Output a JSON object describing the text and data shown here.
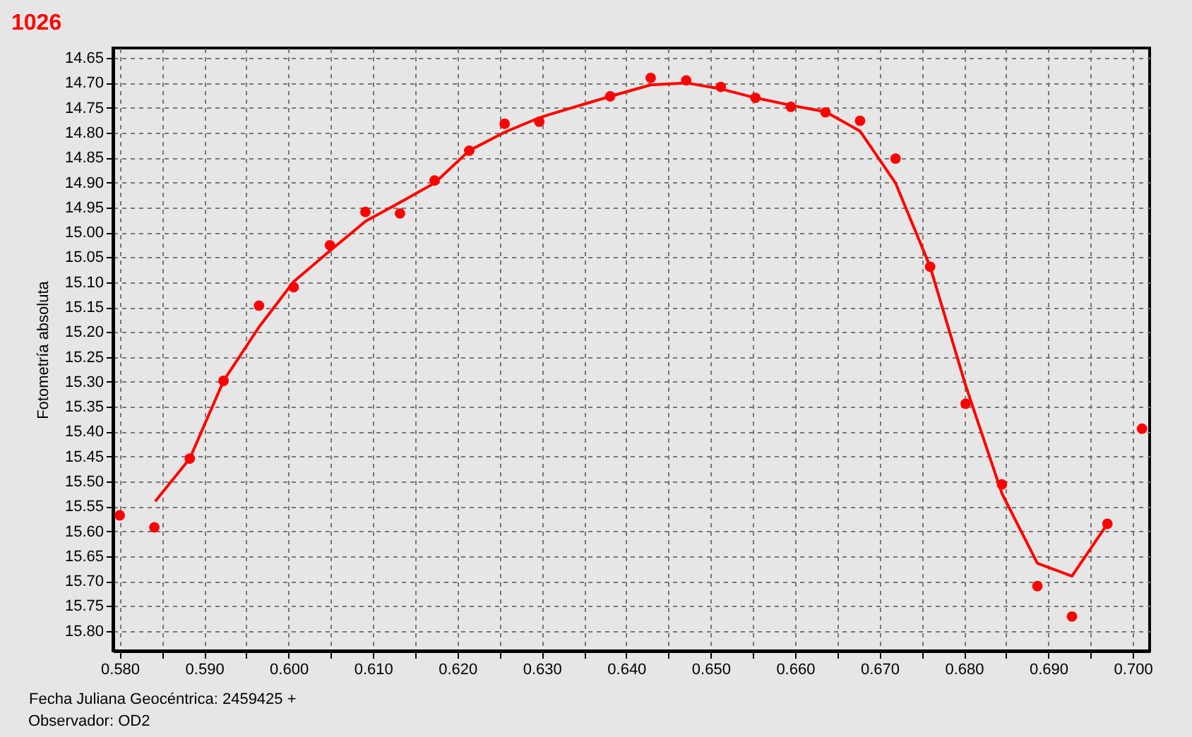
{
  "chart_data": {
    "type": "scatter",
    "title": "1026",
    "xlabel": "Fecha Juliana Geocéntrica: 2459425 +",
    "ylabel": "Fotometría absoluta",
    "annotations": [
      "Observador: OD2"
    ],
    "xlim": [
      0.5792,
      0.702
    ],
    "ylim": [
      15.84,
      14.63
    ],
    "xticks": [
      {
        "value": 0.58,
        "label": "0.580"
      },
      {
        "value": 0.585,
        "label": null
      },
      {
        "value": 0.59,
        "label": "0.590"
      },
      {
        "value": 0.595,
        "label": null
      },
      {
        "value": 0.6,
        "label": "0.600"
      },
      {
        "value": 0.605,
        "label": null
      },
      {
        "value": 0.61,
        "label": "0.610"
      },
      {
        "value": 0.615,
        "label": null
      },
      {
        "value": 0.62,
        "label": "0.620"
      },
      {
        "value": 0.625,
        "label": null
      },
      {
        "value": 0.63,
        "label": "0.630"
      },
      {
        "value": 0.635,
        "label": null
      },
      {
        "value": 0.64,
        "label": "0.640"
      },
      {
        "value": 0.645,
        "label": null
      },
      {
        "value": 0.65,
        "label": "0.650"
      },
      {
        "value": 0.655,
        "label": null
      },
      {
        "value": 0.66,
        "label": "0.660"
      },
      {
        "value": 0.665,
        "label": null
      },
      {
        "value": 0.67,
        "label": "0.670"
      },
      {
        "value": 0.675,
        "label": null
      },
      {
        "value": 0.68,
        "label": "0.680"
      },
      {
        "value": 0.685,
        "label": null
      },
      {
        "value": 0.69,
        "label": "0.690"
      },
      {
        "value": 0.695,
        "label": null
      },
      {
        "value": 0.7,
        "label": "0.700"
      }
    ],
    "yticks": [
      {
        "value": 14.65,
        "label": "14.65"
      },
      {
        "value": 14.7,
        "label": "14.70"
      },
      {
        "value": 14.75,
        "label": "14.75"
      },
      {
        "value": 14.8,
        "label": "14.80"
      },
      {
        "value": 14.85,
        "label": "14.85"
      },
      {
        "value": 14.9,
        "label": "14.90"
      },
      {
        "value": 14.95,
        "label": "14.95"
      },
      {
        "value": 15.0,
        "label": "15.00"
      },
      {
        "value": 15.05,
        "label": "15.05"
      },
      {
        "value": 15.1,
        "label": "15.10"
      },
      {
        "value": 15.15,
        "label": "15.15"
      },
      {
        "value": 15.2,
        "label": "15.20"
      },
      {
        "value": 15.25,
        "label": "15.25"
      },
      {
        "value": 15.3,
        "label": "15.30"
      },
      {
        "value": 15.35,
        "label": "15.35"
      },
      {
        "value": 15.4,
        "label": "15.40"
      },
      {
        "value": 15.45,
        "label": "15.45"
      },
      {
        "value": 15.5,
        "label": "15.50"
      },
      {
        "value": 15.55,
        "label": "15.55"
      },
      {
        "value": 15.6,
        "label": "15.60"
      },
      {
        "value": 15.65,
        "label": "15.65"
      },
      {
        "value": 15.7,
        "label": "15.70"
      },
      {
        "value": 15.75,
        "label": "15.75"
      },
      {
        "value": 15.8,
        "label": "15.80"
      }
    ],
    "grid": true,
    "series": [
      {
        "type": "line",
        "color": "#ff0000",
        "marker": "none",
        "line_style": "solid",
        "x": [
          0.5842,
          0.5883,
          0.5923,
          0.5965,
          0.6006,
          0.6049,
          0.6091,
          0.6132,
          0.6173,
          0.6214,
          0.6256,
          0.6297,
          0.631,
          0.6381,
          0.6429,
          0.6471,
          0.6512,
          0.6553,
          0.6595,
          0.6636,
          0.6677,
          0.6719,
          0.676,
          0.6802,
          0.6845,
          0.6887,
          0.6928,
          0.697
        ],
        "values": [
          15.54,
          15.454,
          15.298,
          15.19,
          15.099,
          15.037,
          14.978,
          14.94,
          14.901,
          14.836,
          14.799,
          14.77,
          14.763,
          14.727,
          14.704,
          14.7,
          14.712,
          14.73,
          14.745,
          14.758,
          14.797,
          14.901,
          15.069,
          15.307,
          15.524,
          15.664,
          15.69,
          15.585
        ]
      },
      {
        "color": "#ff0000",
        "marker": "circle",
        "x": [
          0.58,
          0.5841,
          0.5883,
          0.5923,
          0.5965,
          0.6006,
          0.6049,
          0.6091,
          0.6132,
          0.6173,
          0.6214,
          0.6256,
          0.6297,
          0.6381,
          0.6429,
          0.6471,
          0.6512,
          0.6553,
          0.6595,
          0.6636,
          0.6677,
          0.6719,
          0.676,
          0.6802,
          0.6845,
          0.6887,
          0.6928,
          0.697,
          0.7011
        ],
        "values": [
          15.568,
          15.592,
          15.454,
          15.298,
          15.147,
          15.11,
          15.026,
          14.959,
          14.962,
          14.896,
          14.836,
          14.782,
          14.778,
          14.727,
          14.69,
          14.695,
          14.708,
          14.73,
          14.748,
          14.759,
          14.776,
          14.852,
          15.069,
          15.344,
          15.506,
          15.71,
          15.771,
          15.585,
          15.394
        ]
      }
    ]
  }
}
